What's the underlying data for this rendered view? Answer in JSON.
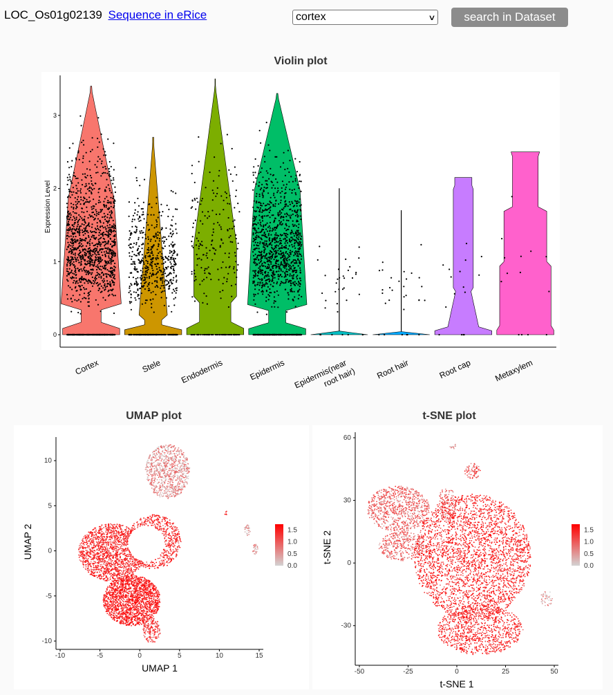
{
  "header": {
    "gene_id": "LOC_Os01g02139",
    "link_label": "Sequence in eRice",
    "select_value": "cortex",
    "search_label": "search in Dataset"
  },
  "chart_data": [
    {
      "type": "violin",
      "title": "Violin plot",
      "xlabel": "",
      "ylabel": "Expression Level",
      "ylim": [
        0,
        3.5
      ],
      "yticks": [
        0,
        1,
        2,
        3
      ],
      "categories": [
        "Cortex",
        "Stele",
        "Endodermis",
        "Epidermis",
        "Epidermis(near root hair)",
        "Root hair",
        "Root cap",
        "Metaxylem"
      ],
      "colors": [
        "#f8766d",
        "#cd9600",
        "#7cae00",
        "#00be67",
        "#00bfc4",
        "#00a9ff",
        "#c77cff",
        "#ff61cc"
      ],
      "max_values": [
        3.4,
        2.7,
        3.5,
        3.3,
        2.0,
        1.7,
        2.15,
        2.5
      ],
      "point_density": [
        1500,
        700,
        260,
        1400,
        35,
        30,
        16,
        14
      ]
    },
    {
      "type": "scatter",
      "title": "UMAP plot",
      "xlabel": "UMAP 1",
      "ylabel": "UMAP 2",
      "xlim": [
        -10,
        15
      ],
      "ylim": [
        -10,
        12
      ],
      "xticks": [
        -10,
        -5,
        0,
        5,
        10,
        15
      ],
      "yticks": [
        -10,
        -5,
        0,
        5,
        10
      ],
      "legend": {
        "title": "",
        "ticks": [
          0.0,
          0.5,
          1.0,
          1.5
        ],
        "low": "#d3d3d3",
        "high": "#ff0000"
      }
    },
    {
      "type": "scatter",
      "title": "t-SNE plot",
      "xlabel": "t-SNE 1",
      "ylabel": "t-SNE 2",
      "xlim": [
        -50,
        50
      ],
      "ylim": [
        -45,
        60
      ],
      "xticks": [
        -50,
        -25,
        0,
        25,
        50
      ],
      "yticks": [
        -30,
        0,
        30,
        60
      ],
      "legend": {
        "title": "",
        "ticks": [
          0.0,
          0.5,
          1.0,
          1.5
        ],
        "low": "#d3d3d3",
        "high": "#ff0000"
      }
    }
  ]
}
